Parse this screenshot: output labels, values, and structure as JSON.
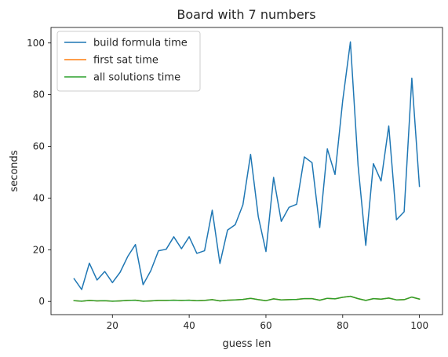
{
  "chart_data": {
    "type": "line",
    "title": "Board with 7 numbers",
    "xlabel": "guess len",
    "ylabel": "seconds",
    "xlim": [
      4,
      106
    ],
    "ylim": [
      -5.1,
      106
    ],
    "xticks": [
      20,
      40,
      60,
      80,
      100
    ],
    "yticks": [
      0,
      20,
      40,
      60,
      80,
      100
    ],
    "grid": false,
    "legend_position": "top-left",
    "x": [
      10,
      12,
      14,
      16,
      18,
      20,
      22,
      24,
      26,
      28,
      30,
      32,
      34,
      36,
      38,
      40,
      42,
      44,
      46,
      48,
      50,
      52,
      54,
      56,
      58,
      60,
      62,
      64,
      66,
      68,
      70,
      72,
      74,
      76,
      78,
      80,
      82,
      84,
      86,
      88,
      90,
      92,
      94,
      96,
      98,
      100
    ],
    "series": [
      {
        "name": "build formula time",
        "color": "#1f77b4",
        "values": [
          8.8,
          4.6,
          14.8,
          8.3,
          11.6,
          7.3,
          11.3,
          17.4,
          22.0,
          6.5,
          11.9,
          19.6,
          20.2,
          25.0,
          20.4,
          25.0,
          18.6,
          19.6,
          35.3,
          14.7,
          27.6,
          29.7,
          37.4,
          56.9,
          32.8,
          19.3,
          48.0,
          31.0,
          36.4,
          37.6,
          55.9,
          53.7,
          28.6,
          59.0,
          49.1,
          77.7,
          100.4,
          52.6,
          21.7,
          53.3,
          46.6,
          67.9,
          31.6,
          34.7,
          86.4,
          44.5
        ]
      },
      {
        "name": "first sat time",
        "color": "#ff7f0e",
        "values": [
          0.3,
          0.1,
          0.4,
          0.2,
          0.3,
          0.1,
          0.2,
          0.4,
          0.5,
          0.1,
          0.2,
          0.4,
          0.4,
          0.5,
          0.4,
          0.5,
          0.3,
          0.4,
          0.7,
          0.2,
          0.5,
          0.6,
          0.8,
          1.2,
          0.7,
          0.3,
          1.0,
          0.6,
          0.7,
          0.8,
          1.1,
          1.1,
          0.5,
          1.2,
          1.0,
          1.6,
          2.0,
          1.1,
          0.4,
          1.1,
          0.9,
          1.3,
          0.6,
          0.7,
          1.7,
          0.9
        ]
      },
      {
        "name": "all solutions time",
        "color": "#2ca02c",
        "values": [
          0.3,
          0.1,
          0.4,
          0.2,
          0.3,
          0.1,
          0.2,
          0.4,
          0.5,
          0.1,
          0.2,
          0.4,
          0.4,
          0.5,
          0.4,
          0.5,
          0.3,
          0.4,
          0.7,
          0.2,
          0.5,
          0.6,
          0.8,
          1.2,
          0.7,
          0.3,
          1.0,
          0.6,
          0.7,
          0.8,
          1.1,
          1.1,
          0.5,
          1.2,
          1.0,
          1.6,
          2.0,
          1.1,
          0.4,
          1.1,
          0.9,
          1.3,
          0.6,
          0.7,
          1.7,
          0.9
        ]
      }
    ]
  }
}
